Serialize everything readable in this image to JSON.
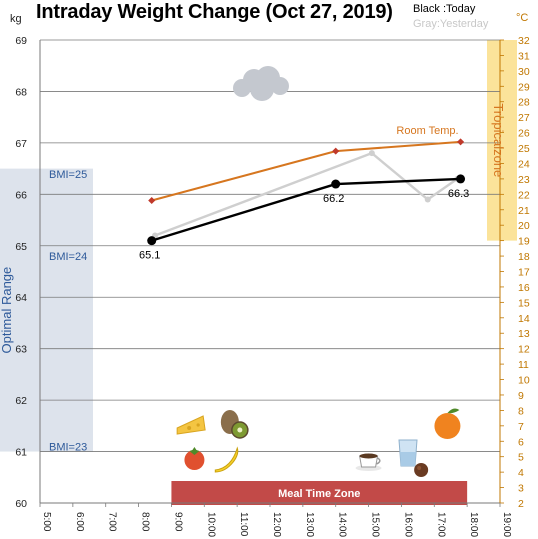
{
  "chart_data": {
    "type": "line",
    "title": "Intraday Weight Change (Oct 27, 2019)",
    "legend": {
      "today": "Black :Today",
      "yesterday": "Gray:Yesterday"
    },
    "ylabel_left": "kg",
    "ylabel_right": "°C",
    "ylim_left": [
      60,
      69
    ],
    "ylim_right": [
      2,
      32
    ],
    "xlim": [
      5,
      19
    ],
    "x_tick_labels": [
      "5:00",
      "6:00",
      "7:00",
      "8:00",
      "9:00",
      "10:00",
      "11:00",
      "12:00",
      "13:00",
      "14:00",
      "15:00",
      "16:00",
      "17:00",
      "18:00",
      "19:00"
    ],
    "left_ticks": [
      60,
      61,
      62,
      63,
      64,
      65,
      66,
      67,
      68,
      69
    ],
    "right_ticks": [
      2,
      3,
      4,
      5,
      6,
      7,
      8,
      9,
      10,
      11,
      12,
      13,
      14,
      15,
      16,
      17,
      18,
      19,
      20,
      21,
      22,
      23,
      24,
      25,
      26,
      27,
      28,
      29,
      30,
      31,
      32
    ],
    "grid": true,
    "series": [
      {
        "key": "today",
        "color": "#000000",
        "x": [
          8.4,
          14.0,
          17.8
        ],
        "y": [
          65.1,
          66.2,
          66.3
        ],
        "labels": [
          "65.1",
          "66.2",
          "66.3"
        ]
      },
      {
        "key": "yesterday",
        "color": "#cfcfcf",
        "x": [
          8.5,
          15.1,
          16.8,
          17.7
        ],
        "y": [
          65.2,
          66.8,
          65.9,
          66.3
        ]
      },
      {
        "name": "Room Temp.",
        "color": "#d6761f",
        "axis": "right",
        "x": [
          8.4,
          14.0,
          17.8
        ],
        "y": [
          21.6,
          24.8,
          25.4
        ]
      }
    ],
    "bands": {
      "optimal_range": {
        "label": "Optimal Range",
        "ymin": 61,
        "ymax": 66.5
      },
      "bmi_labels": [
        {
          "label": "BMI=25",
          "y": 66.4
        },
        {
          "label": "BMI=24",
          "y": 64.8
        },
        {
          "label": "BMI=23",
          "y": 61.1
        }
      ],
      "tropical_zone": {
        "label": "Tropicalzone",
        "ymin": 19,
        "ymax": 32
      },
      "meal_time_zone": {
        "label": "Meal Time Zone",
        "xmin": 9.0,
        "xmax": 18.0
      }
    },
    "meals": [
      {
        "icon": "cheese-icon",
        "x": 9.6,
        "row": "upper"
      },
      {
        "icon": "kiwi-icon",
        "x": 10.9,
        "row": "upper"
      },
      {
        "icon": "tomato-icon",
        "x": 9.7,
        "row": "lower"
      },
      {
        "icon": "banana-icon",
        "x": 10.7,
        "row": "lower"
      },
      {
        "icon": "coffee-cup-icon",
        "x": 15.0,
        "row": "lower"
      },
      {
        "icon": "water-glass-icon",
        "x": 16.2,
        "row": "lower"
      },
      {
        "icon": "orange-icon",
        "x": 17.4,
        "row": "upper"
      },
      {
        "icon": "chocolate-icon",
        "x": 16.6,
        "row": "lowest"
      }
    ],
    "weather_icon": "cloud-icon"
  }
}
